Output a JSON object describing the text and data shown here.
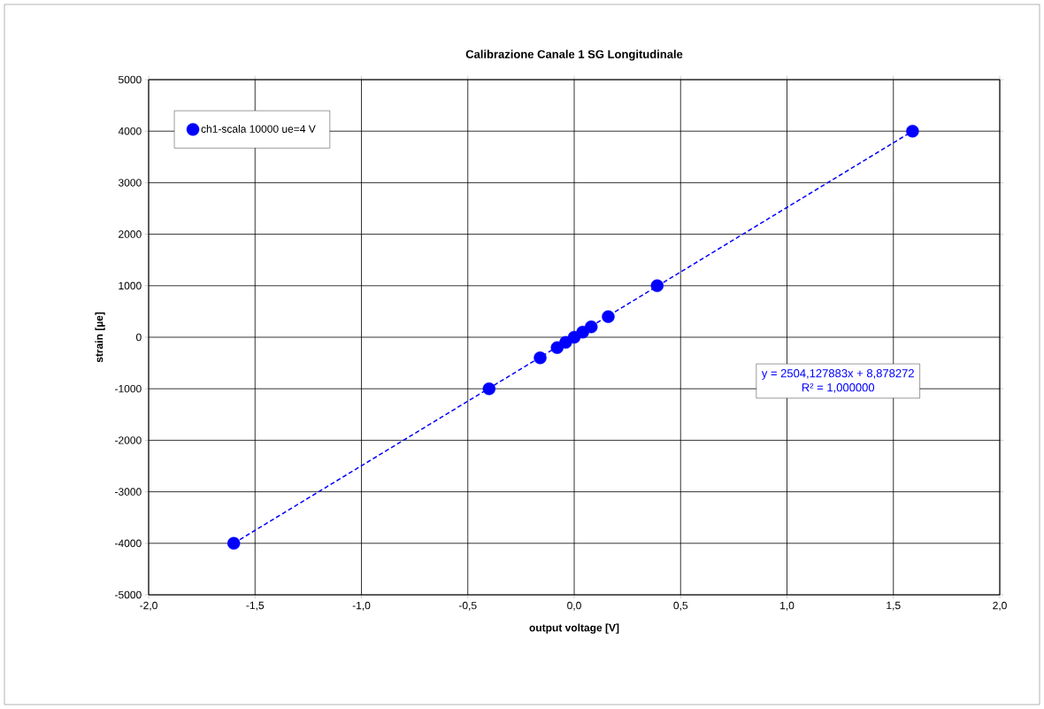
{
  "chart_data": {
    "type": "scatter",
    "title": "Calibrazione Canale 1 SG Longitudinale",
    "xlabel": "output voltage [V]",
    "ylabel": "strain [µe]",
    "series": [
      {
        "name": "ch1-scala 10000 ue=4 V",
        "color": "#0000ff",
        "x": [
          -1.6,
          -0.4,
          -0.16,
          -0.08,
          -0.04,
          0.0,
          0.04,
          0.08,
          0.16,
          0.39,
          1.59
        ],
        "values": [
          -4000,
          -1000,
          -400,
          -200,
          -100,
          0,
          100,
          200,
          400,
          1000,
          4000
        ]
      },
      {
        "type": "line",
        "color": "#0000ff",
        "line_style": "dashed",
        "marker": "none",
        "x": [
          -1.6,
          1.59
        ],
        "values": [
          -4000,
          4000
        ]
      }
    ],
    "annotations": [
      "y = 2504,127883x + 8,878272",
      "R² = 1,000000"
    ],
    "xlim": [
      -2,
      2
    ],
    "ylim": [
      -5000,
      5000
    ],
    "xticks": [
      {
        "value": -2,
        "label": "-2,0"
      },
      {
        "value": -1.5,
        "label": "-1,5"
      },
      {
        "value": -1,
        "label": "-1,0"
      },
      {
        "value": -0.5,
        "label": "-0,5"
      },
      {
        "value": 0,
        "label": "0,0"
      },
      {
        "value": 0.5,
        "label": "0,5"
      },
      {
        "value": 1,
        "label": "1,0"
      },
      {
        "value": 1.5,
        "label": "1,5"
      },
      {
        "value": 2,
        "label": "2,0"
      }
    ],
    "yticks": [
      -5000,
      -4000,
      -3000,
      -2000,
      -1000,
      0,
      1000,
      2000,
      3000,
      4000,
      5000
    ],
    "grid": true,
    "legend": "top left",
    "marker": "circle"
  }
}
